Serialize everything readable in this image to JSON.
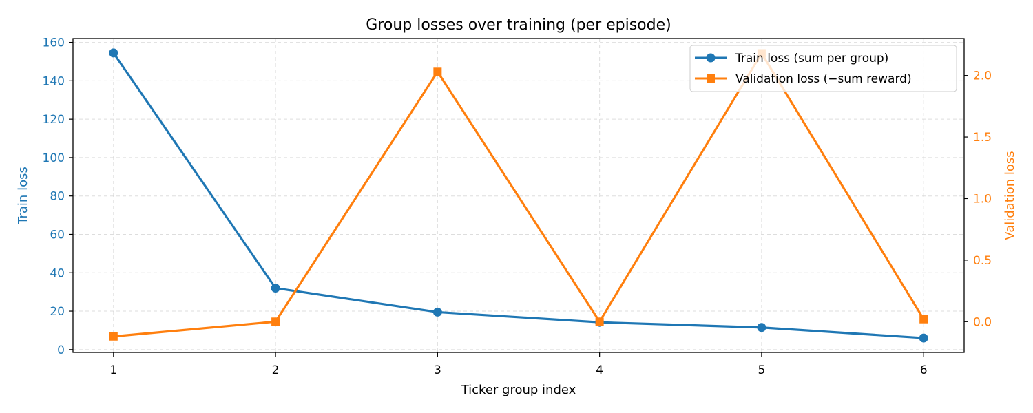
{
  "chart_data": {
    "type": "line",
    "title": "Group losses over training (per episode)",
    "xlabel": "Ticker group index",
    "ylabel_left": "Train loss",
    "ylabel_right": "Validation loss",
    "x": [
      1,
      2,
      3,
      4,
      5,
      6
    ],
    "xlim": [
      0.75,
      6.25
    ],
    "ylim_left": [
      -1.5,
      162
    ],
    "ylim_right": [
      -0.25,
      2.3
    ],
    "x_ticks": [
      1,
      2,
      3,
      4,
      5,
      6
    ],
    "y_ticks_left": [
      0,
      20,
      40,
      60,
      80,
      100,
      120,
      140,
      160
    ],
    "y_ticks_right": [
      "0.0",
      "0.5",
      "1.0",
      "1.5",
      "2.0"
    ],
    "grid": true,
    "legend_position": "top-right",
    "series": [
      {
        "name": "Train loss (sum per group)",
        "axis": "left",
        "color": "#1f77b4",
        "marker": "circle",
        "values": [
          154.5,
          32.0,
          19.5,
          14.2,
          11.5,
          6.0
        ]
      },
      {
        "name": "Validation loss (−sum reward)",
        "axis": "right",
        "color": "#ff7f0e",
        "marker": "square",
        "values": [
          -0.12,
          0.0,
          2.03,
          0.0,
          2.18,
          0.02
        ]
      }
    ]
  }
}
